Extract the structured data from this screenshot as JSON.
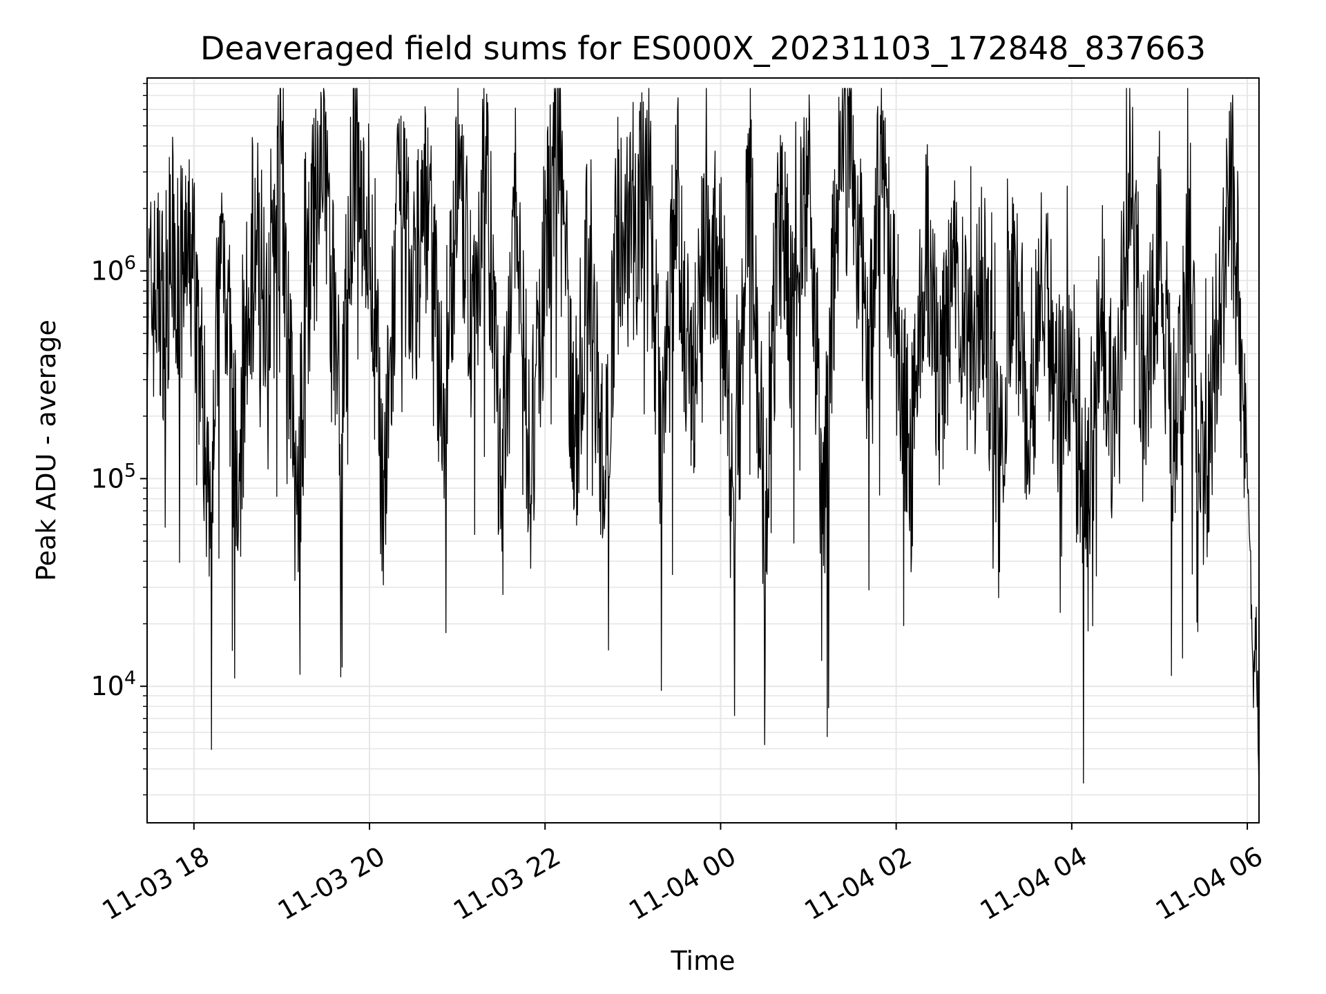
{
  "chart_data": {
    "type": "line",
    "title": "Deaveraged field sums for ES000X_20231103_172848_837663",
    "xlabel": "Time",
    "ylabel": "Peak ADU - average",
    "y_scale": "log",
    "ylim": [
      2200,
      8500000
    ],
    "xlim": [
      "2023-11-03 17:28",
      "2023-11-04 06:08"
    ],
    "grid": true,
    "line_color": "#000000",
    "grid_color": "#e6e6e6",
    "x_ticks": [
      {
        "value": "2023-11-03 18:00",
        "label": "11-03 18"
      },
      {
        "value": "2023-11-03 20:00",
        "label": "11-03 20"
      },
      {
        "value": "2023-11-03 22:00",
        "label": "11-03 22"
      },
      {
        "value": "2023-11-04 00:00",
        "label": "11-04 00"
      },
      {
        "value": "2023-11-04 02:00",
        "label": "11-04 02"
      },
      {
        "value": "2023-11-04 04:00",
        "label": "11-04 04"
      },
      {
        "value": "2023-11-04 06:00",
        "label": "11-04 06"
      }
    ],
    "y_ticks": [
      {
        "value": 10000,
        "base": "10",
        "exp": "4"
      },
      {
        "value": 100000,
        "base": "10",
        "exp": "5"
      },
      {
        "value": 1000000,
        "base": "10",
        "exp": "6"
      }
    ],
    "series": [
      {
        "points": [
          [
            "2023-11-03 17:28",
            700000
          ],
          [
            "2023-11-03 17:35",
            800000
          ],
          [
            "2023-11-03 17:40",
            650000
          ],
          [
            "2023-11-03 17:45",
            1300000
          ],
          [
            "2023-11-03 17:50",
            900000
          ],
          [
            "2023-11-03 18:00",
            1100000
          ],
          [
            "2023-11-03 18:10",
            90000
          ],
          [
            "2023-11-03 18:20",
            1600000
          ],
          [
            "2023-11-03 18:30",
            70000
          ],
          [
            "2023-11-03 18:40",
            1700000
          ],
          [
            "2023-11-03 18:50",
            800000
          ],
          [
            "2023-11-03 19:00",
            3600000
          ],
          [
            "2023-11-03 19:10",
            60000
          ],
          [
            "2023-11-03 19:20",
            1400000
          ],
          [
            "2023-11-03 19:30",
            3000000
          ],
          [
            "2023-11-03 19:40",
            200000
          ],
          [
            "2023-11-03 19:50",
            4000000
          ],
          [
            "2023-11-03 20:00",
            1500000
          ],
          [
            "2023-11-03 20:10",
            75000
          ],
          [
            "2023-11-03 20:20",
            2000000
          ],
          [
            "2023-11-03 20:30",
            850000
          ],
          [
            "2023-11-03 20:40",
            2500000
          ],
          [
            "2023-11-03 20:50",
            180000
          ],
          [
            "2023-11-03 21:00",
            2800000
          ],
          [
            "2023-11-03 21:10",
            600000
          ],
          [
            "2023-11-03 21:20",
            3200000
          ],
          [
            "2023-11-03 21:30",
            80000
          ],
          [
            "2023-11-03 21:40",
            1800000
          ],
          [
            "2023-11-03 21:50",
            100000
          ],
          [
            "2023-11-03 22:00",
            1200000
          ],
          [
            "2023-11-03 22:10",
            5800000
          ],
          [
            "2023-11-03 22:20",
            130000
          ],
          [
            "2023-11-03 22:30",
            1500000
          ],
          [
            "2023-11-03 22:40",
            90000
          ],
          [
            "2023-11-03 22:50",
            2000000
          ],
          [
            "2023-11-03 23:00",
            1300000
          ],
          [
            "2023-11-03 23:10",
            3800000
          ],
          [
            "2023-11-03 23:20",
            110000
          ],
          [
            "2023-11-03 23:30",
            2500000
          ],
          [
            "2023-11-03 23:40",
            200000
          ],
          [
            "2023-11-03 23:50",
            1800000
          ],
          [
            "2023-11-04 00:00",
            1000000
          ],
          [
            "2023-11-04 00:10",
            85000
          ],
          [
            "2023-11-04 00:20",
            2600000
          ],
          [
            "2023-11-04 00:30",
            70000
          ],
          [
            "2023-11-04 00:40",
            1900000
          ],
          [
            "2023-11-04 00:50",
            500000
          ],
          [
            "2023-11-04 01:00",
            3600000
          ],
          [
            "2023-11-04 01:10",
            65000
          ],
          [
            "2023-11-04 01:20",
            2600000
          ],
          [
            "2023-11-04 01:30",
            3800000
          ],
          [
            "2023-11-04 01:40",
            400000
          ],
          [
            "2023-11-04 01:50",
            3000000
          ],
          [
            "2023-11-04 02:00",
            600000
          ],
          [
            "2023-11-04 02:10",
            110000
          ],
          [
            "2023-11-04 02:20",
            1500000
          ],
          [
            "2023-11-04 02:30",
            250000
          ],
          [
            "2023-11-04 02:40",
            1100000
          ],
          [
            "2023-11-04 02:50",
            300000
          ],
          [
            "2023-11-04 03:00",
            900000
          ],
          [
            "2023-11-04 03:10",
            90000
          ],
          [
            "2023-11-04 03:20",
            1200000
          ],
          [
            "2023-11-04 03:30",
            200000
          ],
          [
            "2023-11-04 03:40",
            900000
          ],
          [
            "2023-11-04 03:50",
            300000
          ],
          [
            "2023-11-04 04:00",
            400000
          ],
          [
            "2023-11-04 04:10",
            70000
          ],
          [
            "2023-11-04 04:20",
            700000
          ],
          [
            "2023-11-04 04:30",
            150000
          ],
          [
            "2023-11-04 04:40",
            2900000
          ],
          [
            "2023-11-04 04:50",
            250000
          ],
          [
            "2023-11-04 05:00",
            1600000
          ],
          [
            "2023-11-04 05:10",
            150000
          ],
          [
            "2023-11-04 05:20",
            1000000
          ],
          [
            "2023-11-04 05:30",
            80000
          ],
          [
            "2023-11-04 05:40",
            700000
          ],
          [
            "2023-11-04 05:50",
            2200000
          ],
          [
            "2023-11-04 05:55",
            500000
          ],
          [
            "2023-11-04 06:00",
            100000
          ],
          [
            "2023-11-04 06:02",
            40000
          ],
          [
            "2023-11-04 06:04",
            9000
          ],
          [
            "2023-11-04 06:06",
            20000
          ],
          [
            "2023-11-04 06:08",
            4000
          ]
        ]
      }
    ]
  }
}
